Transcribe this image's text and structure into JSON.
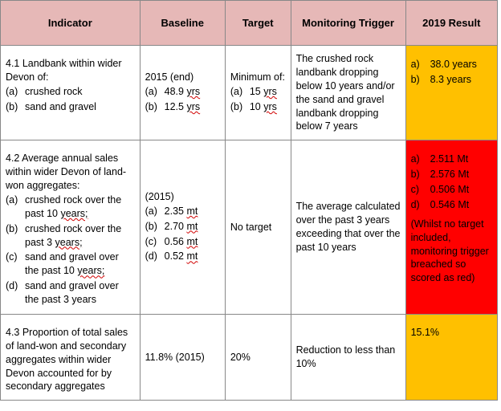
{
  "table": {
    "header_bg": "#e6b8b7",
    "border_color": "#888888",
    "wave_color": "#d00000",
    "columns": {
      "indicator": "Indicator",
      "baseline": "Baseline",
      "target": "Target",
      "monitoring": "Monitoring Trigger",
      "result": "2019 Result"
    },
    "rows": [
      {
        "indicator": {
          "title": "4.1 Landbank within wider Devon of:",
          "items": [
            {
              "mark": "(a)",
              "text": "crushed rock"
            },
            {
              "mark": "(b)",
              "text": "sand and gravel"
            }
          ]
        },
        "baseline": {
          "lead": "2015 (end)",
          "items": [
            {
              "mark": "(a)",
              "value": "48.9",
              "unit": "yrs"
            },
            {
              "mark": "(b)",
              "value": "12.5",
              "unit": "yrs"
            }
          ]
        },
        "target": {
          "lead": "Minimum of:",
          "items": [
            {
              "mark": "(a)",
              "value": "15",
              "unit": "yrs"
            },
            {
              "mark": "(b)",
              "value": "10",
              "unit": "yrs"
            }
          ]
        },
        "monitoring": "The crushed rock landbank dropping below 10 years and/or the sand and gravel landbank dropping below 7 years",
        "result": {
          "color": "#ffc000",
          "items": [
            {
              "mark": "a)",
              "text": "38.0 years"
            },
            {
              "mark": "b)",
              "text": "8.3 years"
            }
          ]
        }
      },
      {
        "indicator": {
          "title": "4.2 Average annual sales within wider Devon of land-won aggregates:",
          "items": [
            {
              "mark": "(a)",
              "pre": "crushed rock over the past 10 ",
              "wavy": "years;"
            },
            {
              "mark": "(b)",
              "pre": "crushed rock over the past 3 ",
              "wavy": "years;"
            },
            {
              "mark": "(c)",
              "pre": "sand and gravel over the past 10 ",
              "wavy": "years;"
            },
            {
              "mark": "(d)",
              "pre": "sand and gravel over the past 3 years",
              "wavy": ""
            }
          ]
        },
        "baseline": {
          "lead": "(2015)",
          "items": [
            {
              "mark": "(a)",
              "value": "2.35",
              "unit": "mt"
            },
            {
              "mark": "(b)",
              "value": "2.70",
              "unit": "mt"
            },
            {
              "mark": "(c)",
              "value": "0.56",
              "unit": "mt"
            },
            {
              "mark": "(d)",
              "value": "0.52",
              "unit": "mt"
            }
          ]
        },
        "target": {
          "plain": "No target"
        },
        "monitoring": "The average calculated over the past 3 years exceeding that over the past 10 years",
        "result": {
          "color": "#ff0000",
          "items": [
            {
              "mark": "a)",
              "text": "2.511 Mt"
            },
            {
              "mark": "b)",
              "text": "2.576 Mt"
            },
            {
              "mark": "c)",
              "text": "0.506 Mt"
            },
            {
              "mark": "d)",
              "text": "0.546 Mt"
            }
          ],
          "note": "(Whilst no target included, monitoring trigger breached so scored as red)"
        }
      },
      {
        "indicator": {
          "title": "4.3 Proportion of total sales of land-won and secondary aggregates within wider Devon accounted for by secondary aggregates"
        },
        "baseline": {
          "plain": "11.8% (2015)"
        },
        "target": {
          "plain": "20%"
        },
        "monitoring": "Reduction to less than 10%",
        "result": {
          "color": "#ffc000",
          "plain": "15.1%"
        }
      }
    ]
  }
}
